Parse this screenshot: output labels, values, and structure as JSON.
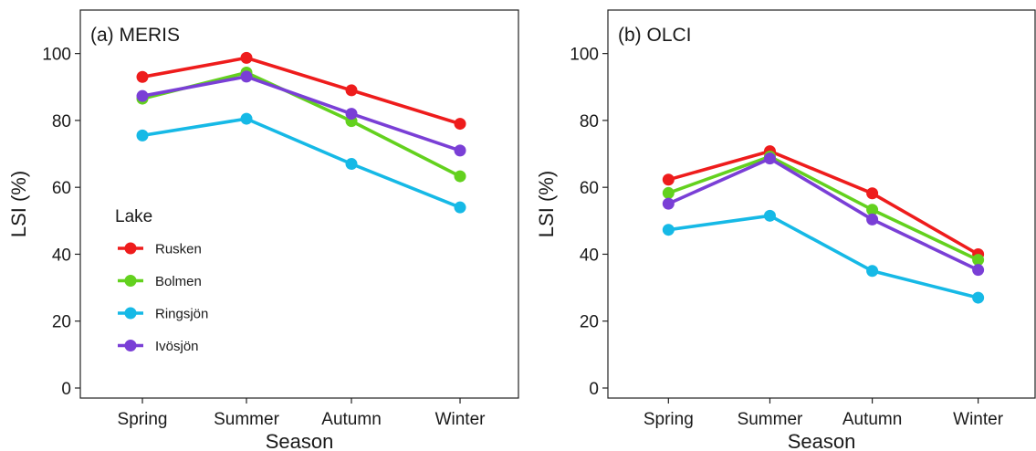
{
  "colors": {
    "Rusken": "#ee1c1c",
    "Bolmen": "#63d11e",
    "Ringsjön": "#16b9e6",
    "Ivösjön": "#7a3fd6"
  },
  "legend": {
    "title": "Lake",
    "entries": [
      "Rusken",
      "Bolmen",
      "Ringsjön",
      "Ivösjön"
    ]
  },
  "chart_data": [
    {
      "type": "line",
      "title": "(a) MERIS",
      "xlabel": "Season",
      "ylabel": "LSI (%)",
      "categories": [
        "Spring",
        "Summer",
        "Autumn",
        "Winter"
      ],
      "ylim": [
        -3,
        113
      ],
      "yticks": [
        0,
        20,
        40,
        60,
        80,
        100
      ],
      "grid": false,
      "legend_position": "left-bottom inside",
      "series": [
        {
          "name": "Rusken",
          "values": [
            93,
            98.7,
            89,
            79
          ]
        },
        {
          "name": "Bolmen",
          "values": [
            86.5,
            94.3,
            79.8,
            63.3
          ]
        },
        {
          "name": "Ringsjön",
          "values": [
            75.5,
            80.5,
            67,
            54
          ]
        },
        {
          "name": "Ivösjön",
          "values": [
            87.3,
            93.1,
            82,
            71
          ]
        }
      ]
    },
    {
      "type": "line",
      "title": "(b) OLCI",
      "xlabel": "Season",
      "ylabel": "LSI (%)",
      "categories": [
        "Spring",
        "Summer",
        "Autumn",
        "Winter"
      ],
      "ylim": [
        -3,
        113
      ],
      "yticks": [
        0,
        20,
        40,
        60,
        80,
        100
      ],
      "grid": false,
      "series": [
        {
          "name": "Rusken",
          "values": [
            62.3,
            70.8,
            58.2,
            40
          ]
        },
        {
          "name": "Bolmen",
          "values": [
            58.3,
            69.2,
            53.3,
            38.3
          ]
        },
        {
          "name": "Ringsjön",
          "values": [
            47.3,
            51.5,
            35,
            27
          ]
        },
        {
          "name": "Ivösjön",
          "values": [
            55.1,
            68.6,
            50.4,
            35.3
          ]
        }
      ]
    }
  ]
}
